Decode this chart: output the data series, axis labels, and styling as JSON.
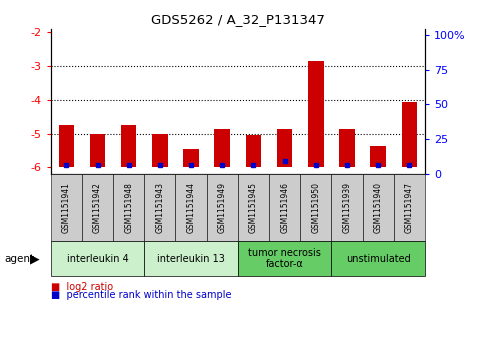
{
  "title": "GDS5262 / A_32_P131347",
  "samples": [
    "GSM1151941",
    "GSM1151942",
    "GSM1151948",
    "GSM1151943",
    "GSM1151944",
    "GSM1151949",
    "GSM1151945",
    "GSM1151946",
    "GSM1151950",
    "GSM1151939",
    "GSM1151940",
    "GSM1151947"
  ],
  "log2_values": [
    -4.75,
    -5.0,
    -4.75,
    -5.0,
    -5.45,
    -4.85,
    -5.05,
    -4.85,
    -2.85,
    -4.85,
    -5.35,
    -4.05
  ],
  "percentile_values": [
    1.5,
    1.5,
    1.5,
    1.5,
    1.5,
    1.5,
    1.5,
    5.0,
    1.5,
    1.5,
    1.5,
    1.5
  ],
  "groups": [
    {
      "label": "interleukin 4",
      "span": [
        0,
        3
      ],
      "color": "#ccf0cc"
    },
    {
      "label": "interleukin 13",
      "span": [
        3,
        6
      ],
      "color": "#ccf0cc"
    },
    {
      "label": "tumor necrosis\nfactor-α",
      "span": [
        6,
        9
      ],
      "color": "#66cc66"
    },
    {
      "label": "unstimulated",
      "span": [
        9,
        12
      ],
      "color": "#66cc66"
    }
  ],
  "ylim": [
    -6.2,
    -1.9
  ],
  "yticks": [
    -6,
    -5,
    -4,
    -3,
    -2
  ],
  "ylim_right": [
    0,
    104
  ],
  "yticks_right": [
    0,
    25,
    50,
    75,
    100
  ],
  "bar_color": "#cc0000",
  "dot_color": "#0000cc",
  "sample_bg_color": "#cccccc",
  "plot_bg_color": "#ffffff",
  "bar_bottom": -6.0,
  "bar_width": 0.5
}
